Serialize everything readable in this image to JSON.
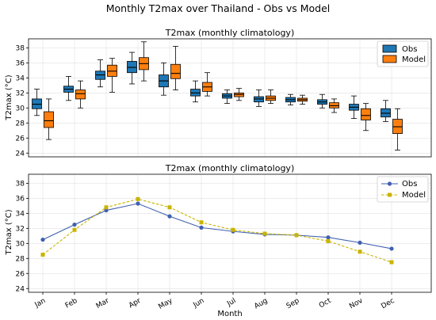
{
  "figure": {
    "suptitle": "Monthly T2max over Thailand - Obs vs Model"
  },
  "colors": {
    "obs_box": "#1f77b4",
    "model_box": "#ff7f0e",
    "obs_line": "#4060b0",
    "model_line": "#c8b400"
  },
  "chart_data": [
    {
      "type": "box",
      "title": "T2max (monthly climatology)",
      "xlabel": "",
      "ylabel": "T2max (°C)",
      "ylim": [
        23.5,
        39.2
      ],
      "yticks": [
        24,
        26,
        28,
        30,
        32,
        34,
        36,
        38
      ],
      "categories": [
        "Jan",
        "Feb",
        "Mar",
        "Apr",
        "May",
        "Jun",
        "Jul",
        "Aug",
        "Sep",
        "Oct",
        "Nov",
        "Dec"
      ],
      "grid": true,
      "legend_position": "top-right",
      "series": [
        {
          "name": "Obs",
          "boxes": [
            {
              "whislo": 29.0,
              "q1": 29.9,
              "med": 30.5,
              "q3": 31.2,
              "whishi": 32.5
            },
            {
              "whislo": 31.0,
              "q1": 32.1,
              "med": 32.5,
              "q3": 32.9,
              "whishi": 34.2
            },
            {
              "whislo": 32.8,
              "q1": 33.8,
              "med": 34.4,
              "q3": 34.9,
              "whishi": 36.4
            },
            {
              "whislo": 33.2,
              "q1": 34.7,
              "med": 35.4,
              "q3": 36.2,
              "whishi": 37.4
            },
            {
              "whislo": 31.7,
              "q1": 32.8,
              "med": 33.6,
              "q3": 34.4,
              "whishi": 36.0
            },
            {
              "whislo": 30.8,
              "q1": 31.6,
              "med": 32.0,
              "q3": 32.5,
              "whishi": 33.6
            },
            {
              "whislo": 30.6,
              "q1": 31.3,
              "med": 31.6,
              "q3": 31.9,
              "whishi": 32.4
            },
            {
              "whislo": 30.2,
              "q1": 30.8,
              "med": 31.2,
              "q3": 31.5,
              "whishi": 32.4
            },
            {
              "whislo": 30.4,
              "q1": 30.8,
              "med": 31.1,
              "q3": 31.4,
              "whishi": 31.8
            },
            {
              "whislo": 30.0,
              "q1": 30.5,
              "med": 30.8,
              "q3": 31.1,
              "whishi": 31.8
            },
            {
              "whislo": 28.6,
              "q1": 29.7,
              "med": 30.1,
              "q3": 30.5,
              "whishi": 31.6
            },
            {
              "whislo": 28.2,
              "q1": 28.8,
              "med": 29.3,
              "q3": 29.9,
              "whishi": 31.0
            }
          ]
        },
        {
          "name": "Model",
          "boxes": [
            {
              "whislo": 25.8,
              "q1": 27.4,
              "med": 28.3,
              "q3": 29.5,
              "whishi": 31.2
            },
            {
              "whislo": 30.0,
              "q1": 31.2,
              "med": 31.9,
              "q3": 32.4,
              "whishi": 33.6
            },
            {
              "whislo": 32.1,
              "q1": 34.2,
              "med": 34.9,
              "q3": 35.7,
              "whishi": 36.6
            },
            {
              "whislo": 33.6,
              "q1": 35.1,
              "med": 35.9,
              "q3": 36.7,
              "whishi": 38.8
            },
            {
              "whislo": 32.4,
              "q1": 33.9,
              "med": 34.6,
              "q3": 35.8,
              "whishi": 38.2
            },
            {
              "whislo": 31.6,
              "q1": 32.2,
              "med": 32.8,
              "q3": 33.4,
              "whishi": 34.7
            },
            {
              "whislo": 31.0,
              "q1": 31.5,
              "med": 31.8,
              "q3": 32.0,
              "whishi": 32.6
            },
            {
              "whislo": 30.6,
              "q1": 31.0,
              "med": 31.3,
              "q3": 31.6,
              "whishi": 32.4
            },
            {
              "whislo": 30.5,
              "q1": 30.9,
              "med": 31.1,
              "q3": 31.3,
              "whishi": 31.7
            },
            {
              "whislo": 29.4,
              "q1": 30.0,
              "med": 30.3,
              "q3": 30.7,
              "whishi": 31.2
            },
            {
              "whislo": 27.0,
              "q1": 28.4,
              "med": 29.0,
              "q3": 29.9,
              "whishi": 30.6
            },
            {
              "whislo": 24.4,
              "q1": 26.6,
              "med": 27.5,
              "q3": 28.5,
              "whishi": 29.9
            }
          ]
        }
      ]
    },
    {
      "type": "line",
      "title": "T2max (monthly climatology)",
      "xlabel": "Month",
      "ylabel": "T2max (°C)",
      "ylim": [
        23.5,
        39.2
      ],
      "yticks": [
        24,
        26,
        28,
        30,
        32,
        34,
        36,
        38
      ],
      "categories": [
        "Jan",
        "Feb",
        "Mar",
        "Apr",
        "May",
        "Jun",
        "Jul",
        "Aug",
        "Sep",
        "Oct",
        "Nov",
        "Dec"
      ],
      "grid": true,
      "legend_position": "top-right",
      "series": [
        {
          "name": "Obs",
          "marker": "circle",
          "linestyle": "solid",
          "values": [
            30.5,
            32.5,
            34.4,
            35.3,
            33.6,
            32.1,
            31.6,
            31.2,
            31.1,
            30.8,
            30.1,
            29.3
          ]
        },
        {
          "name": "Model",
          "marker": "square",
          "linestyle": "dashed",
          "values": [
            28.5,
            31.8,
            34.8,
            35.9,
            34.8,
            32.8,
            31.8,
            31.3,
            31.1,
            30.3,
            28.9,
            27.5
          ]
        }
      ]
    }
  ]
}
